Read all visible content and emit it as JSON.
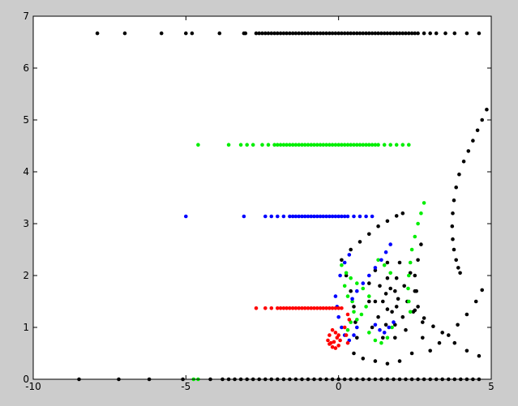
{
  "chart_data": {
    "type": "scatter",
    "xlim": [
      -10,
      5
    ],
    "ylim": [
      0,
      7
    ],
    "x_ticks": [
      -10,
      -5,
      0,
      5
    ],
    "y_ticks": [
      0,
      1,
      2,
      3,
      4,
      5,
      6,
      7
    ],
    "x_tick_labels": [
      "-10",
      "-5",
      "0",
      "5"
    ],
    "y_tick_labels": [
      "0",
      "1",
      "2",
      "3",
      "4",
      "5",
      "6",
      "7"
    ],
    "grid": false,
    "marker": "dot",
    "series": [
      {
        "color": "#000000",
        "rows": [
          {
            "y": 6.67,
            "x": [
              -7.9,
              -7.0,
              -5.8,
              -5.0,
              -4.8,
              -3.9,
              -3.1,
              -3.05,
              -2.7,
              -2.6,
              -2.5,
              -2.4,
              -2.3,
              -2.2,
              -2.1,
              -2.0,
              -1.9,
              -1.8,
              -1.7,
              -1.6,
              -1.5,
              -1.4,
              -1.3,
              -1.2,
              -1.1,
              -1.0,
              -0.9,
              -0.8,
              -0.7,
              -0.6,
              -0.5,
              -0.4,
              -0.3,
              -0.2,
              -0.1,
              0.0,
              0.1,
              0.2,
              0.3,
              0.4,
              0.5,
              0.6,
              0.7,
              0.8,
              0.9,
              1.0,
              1.1,
              1.2,
              1.3,
              1.4,
              1.5,
              1.6,
              1.7,
              1.8,
              1.9,
              2.0,
              2.1,
              2.2,
              2.3,
              2.4,
              2.5,
              2.6,
              2.8,
              3.0,
              3.2,
              3.5,
              3.8,
              4.2,
              4.6
            ]
          },
          {
            "y": 0.0,
            "x": [
              -8.5,
              -7.2,
              -6.2,
              -5.1,
              -4.2,
              -3.8,
              -3.6,
              -3.4,
              -3.2,
              -3.0,
              -2.8,
              -2.6,
              -2.4,
              -2.2,
              -2.0,
              -1.8,
              -1.6,
              -1.4,
              -1.2,
              -1.0,
              -0.8,
              -0.6,
              -0.4,
              -0.2,
              0.0,
              0.2,
              0.4,
              0.6,
              0.8,
              1.0,
              1.2,
              1.4,
              1.6,
              1.8,
              2.0,
              2.2,
              2.4,
              2.6,
              2.8,
              3.0,
              3.2,
              3.4,
              3.6,
              3.8,
              4.0,
              4.2,
              4.4,
              4.6
            ]
          }
        ],
        "points": [
          [
            4.85,
            5.2
          ],
          [
            4.7,
            5.0
          ],
          [
            4.55,
            4.8
          ],
          [
            4.4,
            4.6
          ],
          [
            4.25,
            4.4
          ],
          [
            4.1,
            4.2
          ],
          [
            3.95,
            3.95
          ],
          [
            3.85,
            3.7
          ],
          [
            3.78,
            3.45
          ],
          [
            3.74,
            3.2
          ],
          [
            3.72,
            2.95
          ],
          [
            3.74,
            2.7
          ],
          [
            3.78,
            2.5
          ],
          [
            3.85,
            2.3
          ],
          [
            3.92,
            2.15
          ],
          [
            3.98,
            2.05
          ],
          [
            2.5,
            1.33
          ],
          [
            2.8,
            1.18
          ],
          [
            3.1,
            1.02
          ],
          [
            3.4,
            0.9
          ],
          [
            3.8,
            0.7
          ],
          [
            4.2,
            0.55
          ],
          [
            4.6,
            0.45
          ],
          [
            3.0,
            0.55
          ],
          [
            3.3,
            0.7
          ],
          [
            3.6,
            0.85
          ],
          [
            3.9,
            1.05
          ],
          [
            4.2,
            1.25
          ],
          [
            4.5,
            1.5
          ],
          [
            4.7,
            1.72
          ],
          [
            0.4,
            2.5
          ],
          [
            0.7,
            2.65
          ],
          [
            1.0,
            2.8
          ],
          [
            1.3,
            2.95
          ],
          [
            1.6,
            3.05
          ],
          [
            1.9,
            3.15
          ],
          [
            2.1,
            3.2
          ],
          [
            1.45,
            1.5
          ],
          [
            1.6,
            1.35
          ],
          [
            1.75,
            1.3
          ],
          [
            1.9,
            1.4
          ],
          [
            1.95,
            1.55
          ],
          [
            1.85,
            1.7
          ],
          [
            1.7,
            1.75
          ],
          [
            1.55,
            1.65
          ],
          [
            1.2,
            1.5
          ],
          [
            1.3,
            1.2
          ],
          [
            1.55,
            1.05
          ],
          [
            1.85,
            1.05
          ],
          [
            2.1,
            1.2
          ],
          [
            2.25,
            1.5
          ],
          [
            2.15,
            1.8
          ],
          [
            1.9,
            1.95
          ],
          [
            1.6,
            1.95
          ],
          [
            1.35,
            1.8
          ],
          [
            1.0,
            1.5
          ],
          [
            1.1,
            1.0
          ],
          [
            1.45,
            0.8
          ],
          [
            1.85,
            0.8
          ],
          [
            2.2,
            0.95
          ],
          [
            2.45,
            1.3
          ],
          [
            2.5,
            1.7
          ],
          [
            2.35,
            2.05
          ],
          [
            2.0,
            2.25
          ],
          [
            1.6,
            2.25
          ],
          [
            1.2,
            2.1
          ],
          [
            1.0,
            1.85
          ],
          [
            0.5,
            0.5
          ],
          [
            0.8,
            0.4
          ],
          [
            1.2,
            0.35
          ],
          [
            1.6,
            0.3
          ],
          [
            2.0,
            0.35
          ],
          [
            2.4,
            0.5
          ],
          [
            2.75,
            0.8
          ],
          [
            0.1,
            2.3
          ],
          [
            0.25,
            2.0
          ],
          [
            0.4,
            1.7
          ],
          [
            0.5,
            1.4
          ],
          [
            0.55,
            1.1
          ],
          [
            0.6,
            0.8
          ],
          [
            2.7,
            2.6
          ],
          [
            2.6,
            2.3
          ],
          [
            2.5,
            2.0
          ],
          [
            2.55,
            1.7
          ],
          [
            2.6,
            1.4
          ],
          [
            2.75,
            1.1
          ]
        ]
      },
      {
        "color": "#00ee00",
        "rows": [
          {
            "y": 4.52,
            "x": [
              -4.6,
              -3.6,
              -3.2,
              -3.0,
              -2.8,
              -2.5,
              -2.3,
              -2.1,
              -2.0,
              -1.9,
              -1.8,
              -1.7,
              -1.6,
              -1.5,
              -1.4,
              -1.3,
              -1.2,
              -1.1,
              -1.0,
              -0.9,
              -0.8,
              -0.7,
              -0.6,
              -0.5,
              -0.4,
              -0.3,
              -0.2,
              -0.1,
              0.0,
              0.1,
              0.2,
              0.3,
              0.4,
              0.5,
              0.6,
              0.7,
              0.8,
              0.9,
              1.0,
              1.1,
              1.2,
              1.3,
              1.5,
              1.7,
              1.9,
              2.1,
              2.3
            ]
          },
          {
            "y": 0.0,
            "x": [
              -4.75,
              -4.6
            ]
          }
        ],
        "points": [
          [
            2.8,
            3.4
          ],
          [
            2.7,
            3.2
          ],
          [
            2.6,
            3.0
          ],
          [
            2.5,
            2.75
          ],
          [
            2.4,
            2.5
          ],
          [
            2.35,
            2.25
          ],
          [
            2.3,
            2.0
          ],
          [
            2.28,
            1.75
          ],
          [
            2.3,
            1.5
          ],
          [
            2.35,
            1.3
          ],
          [
            0.1,
            2.2
          ],
          [
            0.25,
            2.05
          ],
          [
            0.4,
            1.95
          ],
          [
            0.6,
            1.85
          ],
          [
            0.8,
            1.75
          ],
          [
            1.0,
            1.6
          ],
          [
            0.9,
            1.4
          ],
          [
            0.75,
            1.25
          ],
          [
            0.6,
            1.15
          ],
          [
            0.2,
            1.8
          ],
          [
            0.3,
            1.6
          ],
          [
            0.45,
            1.5
          ],
          [
            0.5,
            1.3
          ],
          [
            0.4,
            1.1
          ],
          [
            0.3,
            0.95
          ],
          [
            1.0,
            0.9
          ],
          [
            1.2,
            0.75
          ],
          [
            1.4,
            0.7
          ],
          [
            1.6,
            0.8
          ],
          [
            1.75,
            1.0
          ],
          [
            1.3,
            2.3
          ],
          [
            1.5,
            2.2
          ],
          [
            1.7,
            2.05
          ]
        ]
      },
      {
        "color": "#0000ff",
        "rows": [
          {
            "y": 3.14,
            "x": [
              -5.0,
              -3.1,
              -2.4,
              -2.2,
              -2.0,
              -1.8,
              -1.6,
              -1.5,
              -1.4,
              -1.3,
              -1.2,
              -1.1,
              -1.0,
              -0.9,
              -0.8,
              -0.7,
              -0.6,
              -0.5,
              -0.4,
              -0.3,
              -0.2,
              -0.1,
              0.0,
              0.1,
              0.2,
              0.3,
              0.5,
              0.7,
              0.9,
              1.1
            ]
          }
        ],
        "points": [
          [
            1.7,
            2.6
          ],
          [
            1.55,
            2.45
          ],
          [
            1.4,
            2.3
          ],
          [
            1.2,
            2.15
          ],
          [
            1.0,
            2.0
          ],
          [
            0.8,
            1.85
          ],
          [
            0.6,
            1.7
          ],
          [
            0.45,
            1.55
          ],
          [
            -0.1,
            1.6
          ],
          [
            -0.05,
            1.4
          ],
          [
            0.0,
            1.2
          ],
          [
            0.1,
            1.0
          ],
          [
            0.2,
            0.85
          ],
          [
            0.35,
            0.75
          ],
          [
            0.5,
            0.85
          ],
          [
            0.6,
            1.0
          ],
          [
            1.2,
            1.05
          ],
          [
            1.35,
            0.95
          ],
          [
            1.5,
            0.9
          ],
          [
            1.65,
            1.0
          ],
          [
            1.8,
            1.1
          ],
          [
            0.05,
            2.0
          ],
          [
            0.2,
            2.25
          ],
          [
            0.35,
            2.4
          ]
        ]
      },
      {
        "color": "#ff0000",
        "rows": [
          {
            "y": 1.37,
            "x": [
              -2.7,
              -2.4,
              -2.2,
              -2.0,
              -1.9,
              -1.8,
              -1.7,
              -1.6,
              -1.5,
              -1.4,
              -1.3,
              -1.2,
              -1.1,
              -1.0,
              -0.9,
              -0.8,
              -0.7,
              -0.6,
              -0.5,
              -0.4,
              -0.3,
              -0.2,
              -0.1,
              0.0,
              0.1
            ]
          }
        ],
        "points": [
          [
            -0.2,
            0.95
          ],
          [
            -0.3,
            0.85
          ],
          [
            -0.35,
            0.75
          ],
          [
            -0.3,
            0.68
          ],
          [
            -0.2,
            0.62
          ],
          [
            -0.1,
            0.6
          ],
          [
            0.0,
            0.65
          ],
          [
            0.05,
            0.75
          ],
          [
            0.0,
            0.85
          ],
          [
            -0.1,
            0.9
          ],
          [
            0.2,
            1.0
          ],
          [
            0.25,
            0.85
          ],
          [
            0.3,
            0.7
          ],
          [
            0.35,
            1.15
          ],
          [
            0.3,
            1.25
          ],
          [
            -0.25,
            0.7
          ],
          [
            -0.15,
            0.72
          ],
          [
            -0.05,
            0.8
          ]
        ]
      }
    ]
  }
}
